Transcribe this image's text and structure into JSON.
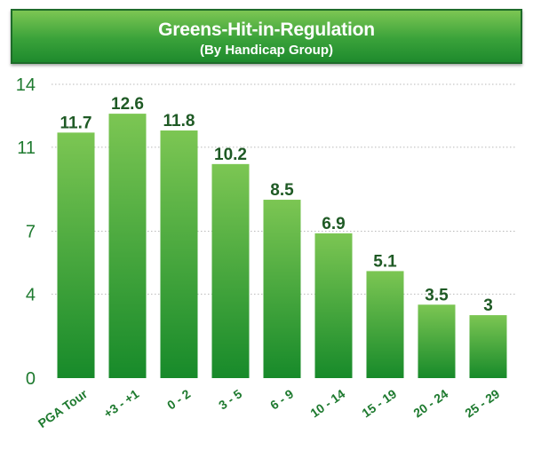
{
  "chart_data": {
    "type": "bar",
    "title": "Greens-Hit-in-Regulation",
    "subtitle": "(By Handicap Group)",
    "categories": [
      "PGA Tour",
      "+3 - +1",
      "0 - 2",
      "3 - 5",
      "6 - 9",
      "10 - 14",
      "15 - 19",
      "20 - 24",
      "25 - 29"
    ],
    "values": [
      11.7,
      12.6,
      11.8,
      10.2,
      8.5,
      6.9,
      5.1,
      3.5,
      3
    ],
    "data_labels": [
      "11.7",
      "12.6",
      "11.8",
      "10.2",
      "8.5",
      "6.9",
      "5.1",
      "3.5",
      "3"
    ],
    "y_ticks": [
      0,
      4,
      7,
      11,
      14
    ],
    "y_tick_labels": [
      "0",
      "4",
      "7",
      "11",
      "14"
    ],
    "ylim": [
      0,
      14
    ],
    "grid": "horizontal-dotted",
    "legend": "none",
    "colors": {
      "bar_top": "#7cc653",
      "bar_bottom": "#178a2a",
      "tick_text": "#1e7a2f",
      "label_text": "#1f5a25"
    }
  }
}
